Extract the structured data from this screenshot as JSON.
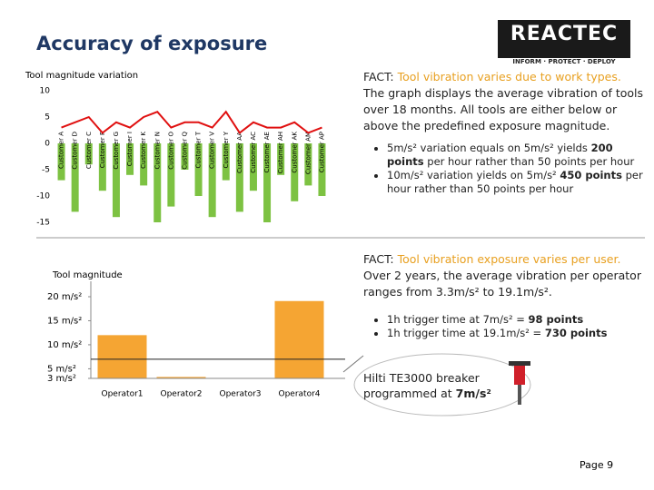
{
  "header": {
    "title": "Accuracy of exposure",
    "logo": "REACTEC",
    "tagline": "INFORM · PROTECT · DEPLOY"
  },
  "chart_data": [
    {
      "type": "combo",
      "title": "Tool magnitude variation",
      "categories": [
        "Customer A",
        "Customer D",
        "Customer C",
        "Customer F",
        "Customer G",
        "Customer I",
        "Customer K",
        "Customer N",
        "Customer O",
        "Customer Q",
        "Customer T",
        "Customer V",
        "Customer Y",
        "Customer AA",
        "Customer AC",
        "Customer AE",
        "Customer AH",
        "Customer AK",
        "Customer AM",
        "Customer AP"
      ],
      "series": [
        {
          "type": "bar",
          "color": "#7dc242",
          "values": [
            -7,
            -13,
            -4,
            -9,
            -14,
            -6,
            -8,
            -15,
            -12,
            -5,
            -10,
            -14,
            -7,
            -13,
            -9,
            -15,
            -6,
            -11,
            -8,
            -10
          ]
        },
        {
          "type": "line",
          "color": "#e01010",
          "values": [
            3,
            4,
            5,
            2,
            4,
            3,
            5,
            6,
            3,
            4,
            4,
            3,
            6,
            2,
            4,
            3,
            3,
            4,
            2,
            3
          ]
        }
      ],
      "ylim": [
        -15,
        10
      ],
      "yticks": [
        -15,
        -10,
        -5,
        0,
        5,
        10
      ]
    },
    {
      "type": "bar",
      "title": "Tool magnitude",
      "categories": [
        "Operator1",
        "Operator2",
        "Operator3",
        "Operator4"
      ],
      "values": [
        12,
        3.3,
        null,
        19.1
      ],
      "color": "#f5a533",
      "reference_line": 7,
      "ylim": [
        3,
        20
      ],
      "yticks": [
        {
          "value": 3,
          "label": "3 m/s²"
        },
        {
          "value": 5,
          "label": "5 m/s²"
        },
        {
          "value": 10,
          "label": "10 m/s²"
        },
        {
          "value": 15,
          "label": "15 m/s²"
        },
        {
          "value": 20,
          "label": "20 m/s²"
        }
      ]
    }
  ],
  "facts": [
    {
      "label": "FACT:",
      "headline": "Tool vibration varies due to work types.",
      "body": "The graph displays the average vibration of tools over 18 months. All tools are either below or above the predefined exposure magnitude.",
      "bullets": [
        [
          "5m/s² variation equals on 5m/s² yields ",
          "200 points",
          " per hour rather than 50 points per hour"
        ],
        [
          "10m/s² variation yields on 5m/s² ",
          "450 points",
          " per hour rather than 50 points per hour"
        ]
      ]
    },
    {
      "label": "FACT:",
      "headline": "Tool vibration exposure varies per user.",
      "body": "Over 2 years, the average vibration per operator ranges from 3.3m/s² to 19.1m/s².",
      "bullets": [
        [
          "1h trigger time at 7m/s² = ",
          "98 points",
          ""
        ],
        [
          "1h trigger time at 19.1m/s² = ",
          "730 points",
          ""
        ]
      ]
    }
  ],
  "callout": {
    "text": "Hilti TE3000 breaker programmed at ",
    "emphasis": "7m/s²"
  },
  "footer": {
    "page": "Page 9"
  }
}
